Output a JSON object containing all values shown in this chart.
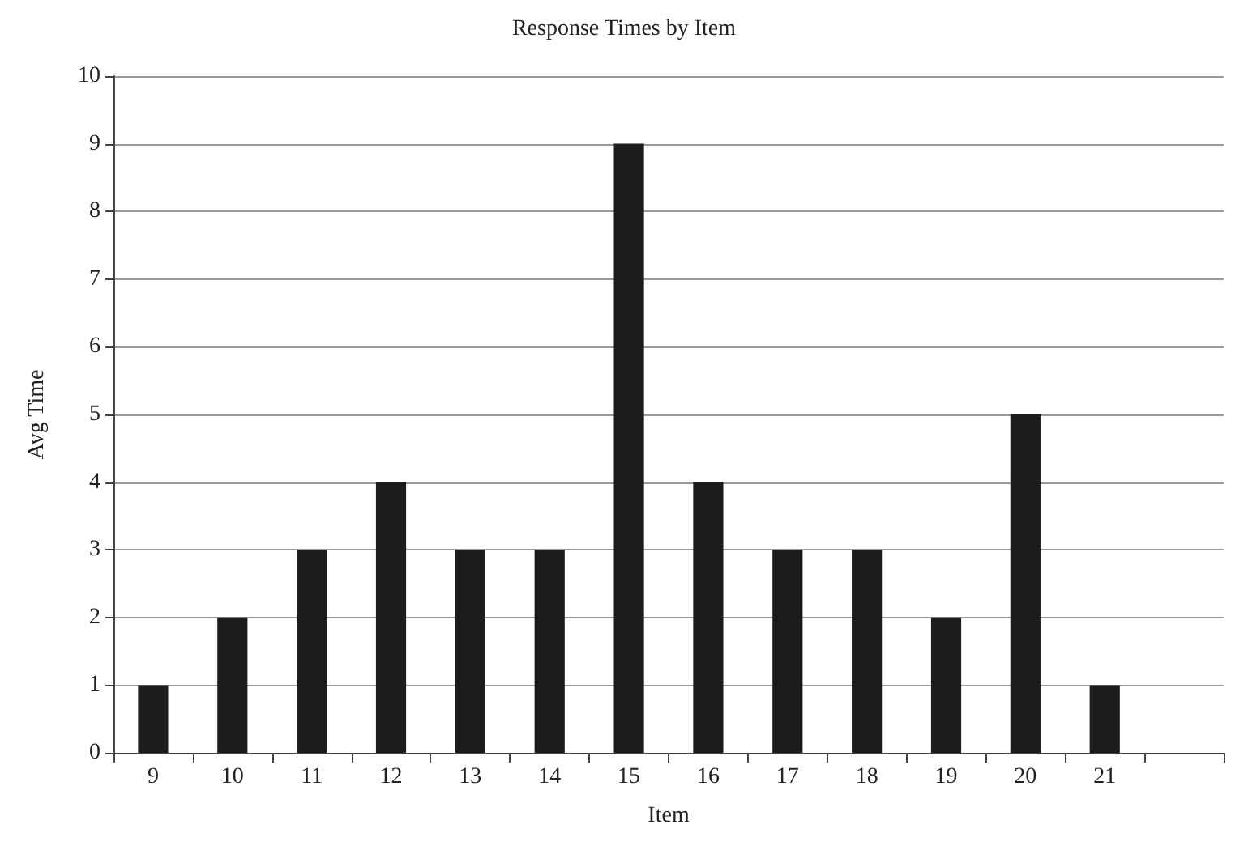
{
  "chart_data": {
    "type": "bar",
    "title": "Response Times by Item",
    "xlabel": "Item",
    "ylabel": "Avg Time",
    "categories": [
      "9",
      "10",
      "11",
      "12",
      "13",
      "14",
      "15",
      "16",
      "17",
      "18",
      "19",
      "20",
      "21",
      null
    ],
    "values": [
      1,
      2,
      3,
      4,
      3,
      3,
      9,
      4,
      3,
      3,
      2,
      5,
      1,
      null
    ],
    "color": "#1c1c1c",
    "ylim": [
      0,
      10
    ],
    "yticks": [
      0,
      1,
      2,
      3,
      4,
      5,
      6,
      7,
      8,
      9,
      10
    ],
    "grid": "y"
  }
}
